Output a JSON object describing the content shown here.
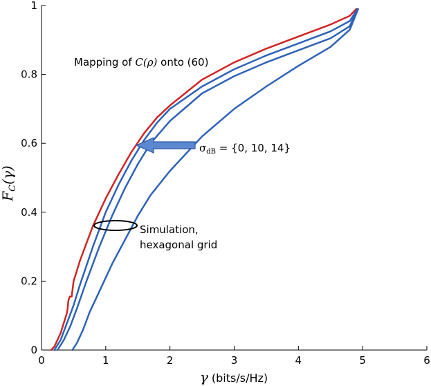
{
  "chart_data": {
    "type": "line",
    "xlabel": "γ (bits/s/Hz)",
    "ylabel": "F_C(γ)",
    "xlim": [
      0,
      6
    ],
    "ylim": [
      0,
      1
    ],
    "xticks": [
      0,
      1,
      2,
      3,
      4,
      5,
      6
    ],
    "yticks": [
      0,
      0.2,
      0.4,
      0.6,
      0.8,
      1
    ],
    "grid": false,
    "series": [
      {
        "color": "#d02525",
        "x": [
          0.15,
          0.2,
          0.3,
          0.4,
          0.42,
          0.44,
          0.47,
          0.5,
          0.6,
          0.7,
          0.8,
          1.0,
          1.2,
          1.4,
          1.6,
          1.8,
          2.0,
          2.5,
          3.0,
          3.5,
          4.0,
          4.5,
          4.8,
          4.9
        ],
        "y": [
          0.0,
          0.01,
          0.05,
          0.11,
          0.145,
          0.155,
          0.155,
          0.2,
          0.26,
          0.31,
          0.36,
          0.44,
          0.51,
          0.575,
          0.63,
          0.675,
          0.71,
          0.785,
          0.835,
          0.875,
          0.91,
          0.945,
          0.97,
          0.99
        ]
      },
      {
        "color": "#2d62b8",
        "x": [
          0.2,
          0.3,
          0.4,
          0.5,
          0.6,
          0.8,
          1.0,
          1.2,
          1.4,
          1.6,
          1.8,
          2.0,
          2.5,
          3.0,
          3.5,
          4.0,
          4.5,
          4.8,
          4.92
        ],
        "y": [
          0.0,
          0.03,
          0.08,
          0.13,
          0.19,
          0.3,
          0.4,
          0.48,
          0.55,
          0.61,
          0.66,
          0.7,
          0.765,
          0.815,
          0.855,
          0.89,
          0.925,
          0.955,
          0.99
        ]
      },
      {
        "color": "#2d62b8",
        "x": [
          0.25,
          0.35,
          0.45,
          0.55,
          0.7,
          0.9,
          1.1,
          1.3,
          1.5,
          1.7,
          2.0,
          2.5,
          3.0,
          3.5,
          4.0,
          4.5,
          4.8,
          4.92
        ],
        "y": [
          0.0,
          0.03,
          0.07,
          0.12,
          0.2,
          0.3,
          0.39,
          0.47,
          0.54,
          0.6,
          0.665,
          0.745,
          0.795,
          0.835,
          0.87,
          0.905,
          0.94,
          0.99
        ]
      },
      {
        "color": "#2d62b8",
        "x": [
          0.48,
          0.55,
          0.65,
          0.75,
          0.9,
          1.1,
          1.3,
          1.5,
          1.7,
          2.0,
          2.5,
          3.0,
          3.5,
          4.0,
          4.5,
          4.8,
          4.93
        ],
        "y": [
          0.0,
          0.02,
          0.06,
          0.11,
          0.17,
          0.25,
          0.32,
          0.39,
          0.45,
          0.52,
          0.62,
          0.7,
          0.765,
          0.825,
          0.88,
          0.93,
          0.99
        ]
      }
    ],
    "annotations": {
      "mapping_prefix": "Mapping of ",
      "mapping_math": "C(ρ)",
      "mapping_suffix": " onto (60)",
      "sigma_symbol": "σ",
      "sigma_sub": "dB",
      "sigma_values": " = {0, 10, 14}",
      "simulation_line1": "Simulation,",
      "simulation_line2": "hexagonal grid"
    }
  }
}
